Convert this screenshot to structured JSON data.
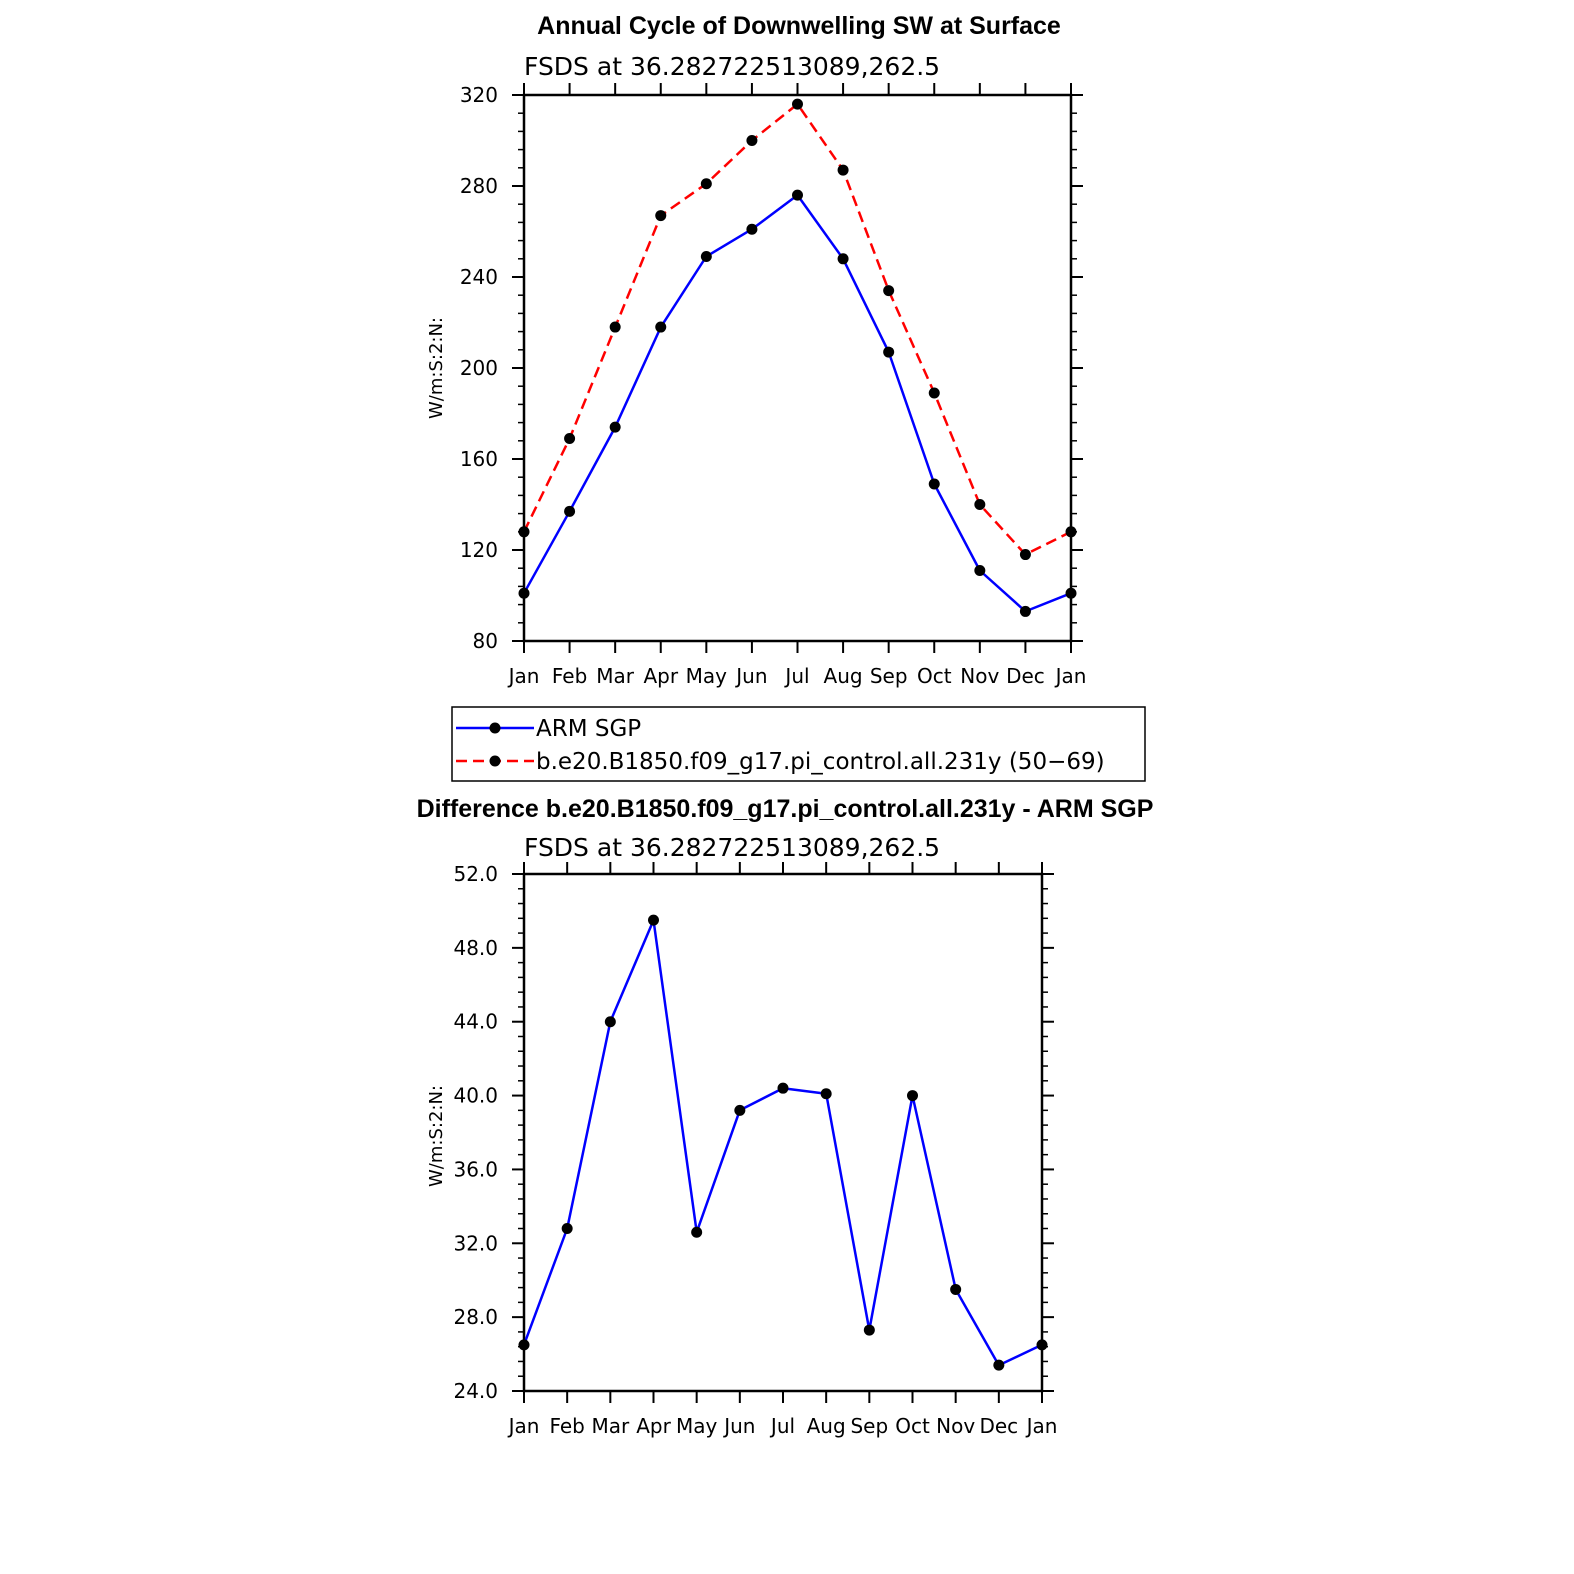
{
  "chart_data": [
    {
      "type": "line",
      "title": "Annual Cycle of Downwelling SW at Surface",
      "subtitle": "FSDS at 36.282722513089,262.5",
      "ylabel": "W/m:S:2:N:",
      "xlabel": "",
      "categories": [
        "Jan",
        "Feb",
        "Mar",
        "Apr",
        "May",
        "Jun",
        "Jul",
        "Aug",
        "Sep",
        "Oct",
        "Nov",
        "Dec",
        "Jan"
      ],
      "ylim": [
        80,
        320
      ],
      "yticks": [
        "80",
        "120",
        "160",
        "200",
        "240",
        "280",
        "320"
      ],
      "series": [
        {
          "name": "ARM SGP",
          "color": "#0000ff",
          "dash": "solid",
          "values": [
            101,
            137,
            174,
            218,
            249,
            261,
            276,
            248,
            207,
            149,
            111,
            93,
            101
          ]
        },
        {
          "name": "b.e20.B1850.f09_g17.pi_control.all.231y (50−69)",
          "color": "#ff0000",
          "dash": "dashed",
          "values": [
            128,
            169,
            218,
            267,
            281,
            300,
            316,
            287,
            234,
            189,
            140,
            118,
            128
          ]
        }
      ],
      "legend": "below"
    },
    {
      "type": "line",
      "title": "Difference b.e20.B1850.f09_g17.pi_control.all.231y - ARM SGP",
      "subtitle": "FSDS at 36.282722513089,262.5",
      "ylabel": "W/m:S:2:N:",
      "xlabel": "",
      "categories": [
        "Jan",
        "Feb",
        "Mar",
        "Apr",
        "May",
        "Jun",
        "Jul",
        "Aug",
        "Sep",
        "Oct",
        "Nov",
        "Dec",
        "Jan"
      ],
      "ylim": [
        24,
        52
      ],
      "yticks": [
        "24.0",
        "28.0",
        "32.0",
        "36.0",
        "40.0",
        "44.0",
        "48.0",
        "52.0"
      ],
      "series": [
        {
          "color": "#0000ff",
          "dash": "solid",
          "values": [
            26.5,
            32.8,
            44.0,
            49.5,
            32.6,
            39.2,
            40.4,
            40.1,
            27.3,
            40.0,
            29.5,
            25.4,
            26.5
          ]
        }
      ]
    }
  ]
}
